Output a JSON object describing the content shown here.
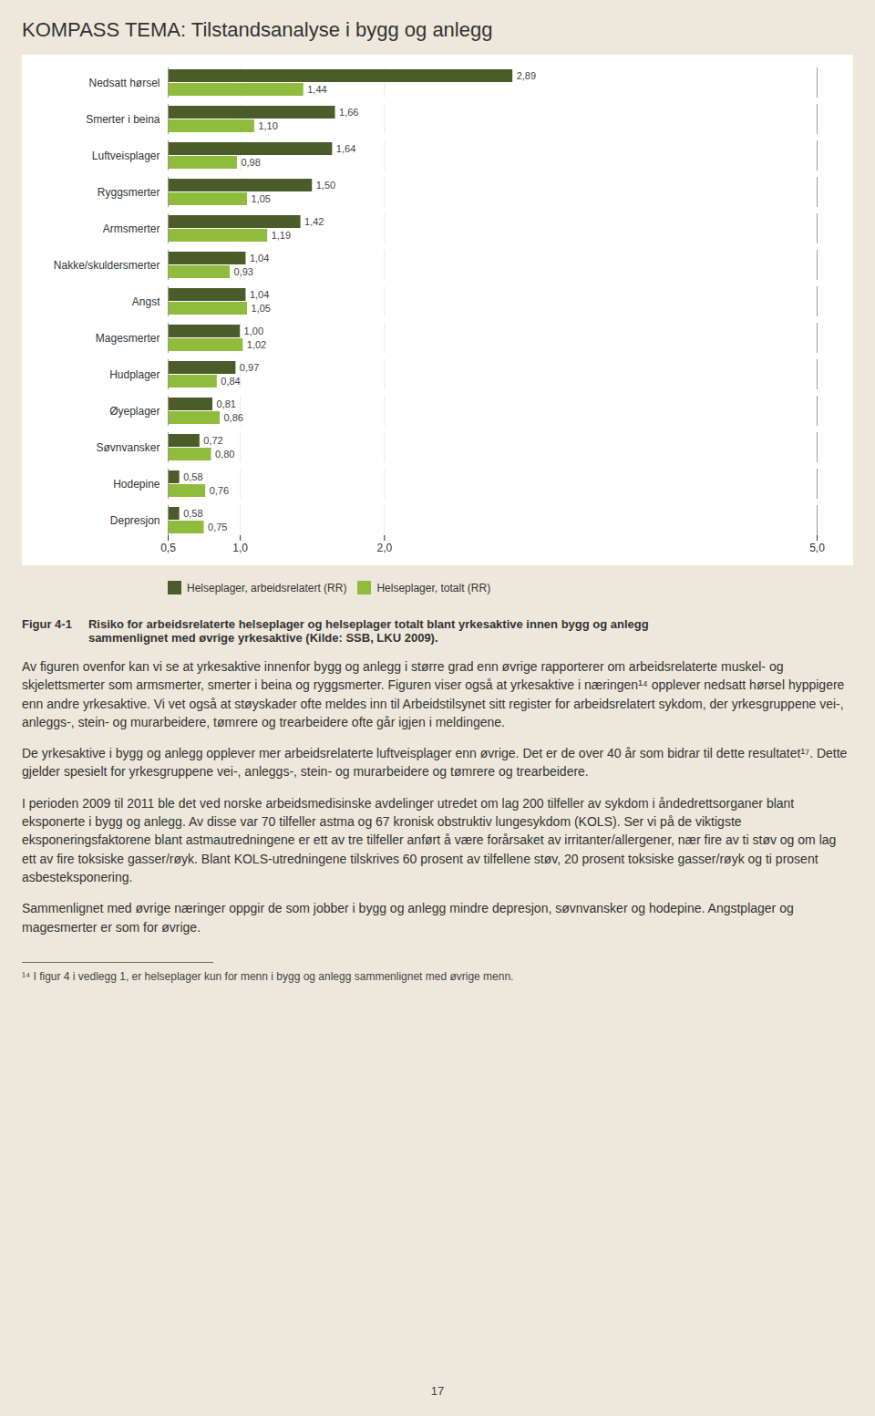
{
  "chart_data": {
    "type": "bar",
    "orientation": "horizontal",
    "title": "KOMPASS TEMA: Tilstandsanalyse i bygg og anlegg",
    "categories": [
      "Nedsatt hørsel",
      "Smerter i beina",
      "Luftveisplager",
      "Ryggsmerter",
      "Armsmerter",
      "Nakke/skuldersmerter",
      "Angst",
      "Magesmerter",
      "Hudplager",
      "Øyeplager",
      "Søvnvansker",
      "Hodepine",
      "Depresjon"
    ],
    "series": [
      {
        "name": "Helseplager, arbeidsrelatert (RR)",
        "color": "#4a5c2a",
        "values": [
          2.89,
          1.66,
          1.64,
          1.5,
          1.42,
          1.04,
          1.04,
          1.0,
          0.97,
          0.81,
          0.72,
          0.58,
          0.58
        ],
        "value_labels": [
          "2,89",
          "1,66",
          "1,64",
          "1,50",
          "1,42",
          "1,04",
          "1,04",
          "1,00",
          "0,97",
          "0,81",
          "0,72",
          "0,58",
          "0,58"
        ]
      },
      {
        "name": "Helseplager, totalt (RR)",
        "color": "#8fbc3c",
        "values": [
          1.44,
          1.1,
          0.98,
          1.05,
          1.19,
          0.93,
          1.05,
          1.02,
          0.84,
          0.86,
          0.8,
          0.76,
          0.75
        ],
        "value_labels": [
          "1,44",
          "1,10",
          "0,98",
          "1,05",
          "1,19",
          "0,93",
          "1,05",
          "1,02",
          "0,84",
          "0,86",
          "0,80",
          "0,76",
          "0,75"
        ]
      }
    ],
    "xlim": [
      0.5,
      5.0
    ],
    "xticks": [
      {
        "value": 0.5,
        "label": "0,5"
      },
      {
        "value": 1.0,
        "label": "1,0"
      },
      {
        "value": 2.0,
        "label": "2,0"
      },
      {
        "value": 5.0,
        "label": "5,0"
      }
    ],
    "grid": true,
    "legend": "bottom",
    "data_labels": true,
    "annotations": [
      "Figur 4-1",
      "Risiko for arbeidsrelaterte helseplager og helseplager totalt blant yrkesaktive innen bygg og anlegg\nsammenlignet med øvrige yrkesaktive (Kilde: SSB, LKU 2009).",
      "Av figuren ovenfor kan vi se at yrkesaktive innenfor bygg og anlegg i større grad enn øvrige rapporterer om arbeidsrelaterte muskel- og skjelettsmerter som armsmerter, smerter i beina og ryggsmerter. Figuren viser også at yrkesaktive i næringen¹⁴ opplever nedsatt hørsel hyppigere enn andre yrkesaktive. Vi vet også at støyskader ofte meldes inn til Arbeidstilsynet sitt register for arbeidsrelatert sykdom, der yrkesgruppene vei-, anleggs-, stein- og murarbeidere, tømrere og trearbeidere ofte går igjen i meldingene.",
      "De yrkesaktive i bygg og anlegg opplever mer arbeidsrelaterte luftveisplager enn øvrige. Det er de over 40 år som bidrar til dette resultatet¹⁷. Dette gjelder spesielt for yrkesgruppene vei-, anleggs-, stein- og murarbeidere og tømrere og trearbeidere.",
      "I perioden 2009 til 2011 ble det ved norske arbeidsmedisinske avdelinger utredet om lag 200 tilfeller av sykdom i åndedrettsorganer blant eksponerte i bygg og anlegg. Av disse var 70 tilfeller astma og 67 kronisk obstruktiv lungesykdom (KOLS). Ser vi på de viktigste eksponeringsfaktorene blant astmautredningene er ett av tre tilfeller anført å være forårsaket av irritanter/allergener, nær fire av ti støv og om lag ett av fire toksiske gasser/røyk. Blant KOLS-utredningene tilskrives 60 prosent av tilfellene støv, 20 prosent toksiske gasser/røyk og ti prosent asbesteksponering.",
      "Sammenlignet med øvrige næringer oppgir de som jobber i bygg og anlegg mindre depresjon, søvnvansker og hodepine. Angstplager og magesmerter er som for øvrige.",
      "¹⁴ I figur 4 i vedlegg 1, er helseplager kun for menn i bygg og anlegg sammenlignet med øvrige menn.",
      "17"
    ]
  }
}
